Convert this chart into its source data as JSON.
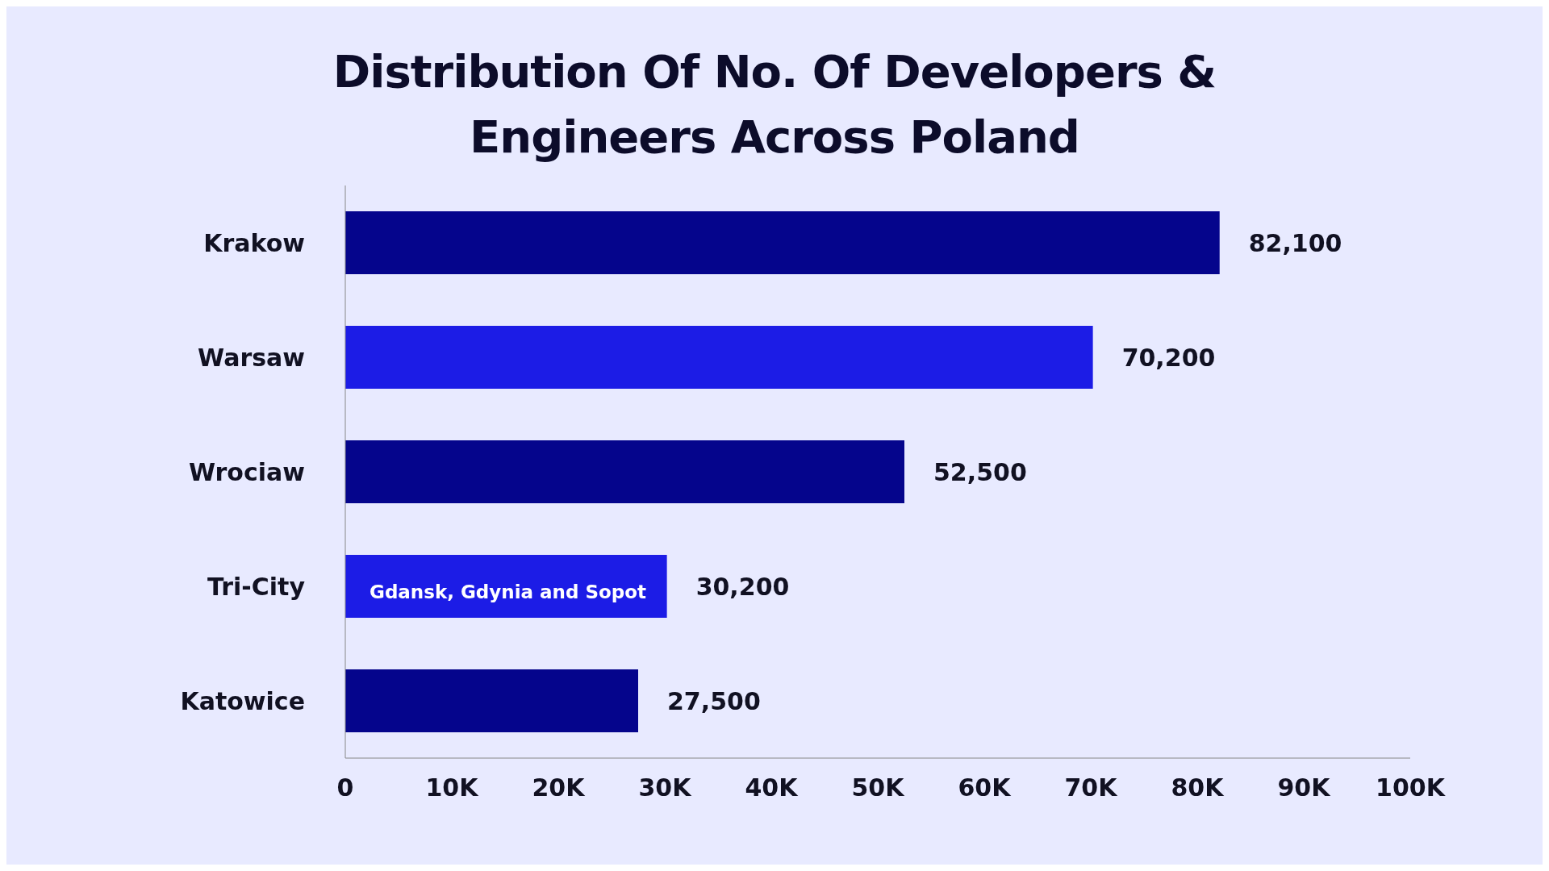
{
  "chart_data": {
    "type": "bar",
    "orientation": "horizontal",
    "title": "Distribution Of No. Of Developers & Engineers Across Poland",
    "categories": [
      "Krakow",
      "Warsaw",
      "Wrociaw",
      "Tri-City",
      "Katowice"
    ],
    "values": [
      82100,
      70200,
      52500,
      30200,
      27500
    ],
    "colors": [
      "#05058c",
      "#1c1ce6",
      "#05058c",
      "#1c1ce6",
      "#05058c"
    ],
    "xlim": [
      0,
      100000
    ],
    "xticks": [
      {
        "value": 0,
        "label": "0"
      },
      {
        "value": 10000,
        "label": "10K"
      },
      {
        "value": 20000,
        "label": "20K"
      },
      {
        "value": 30000,
        "label": "30K"
      },
      {
        "value": 40000,
        "label": "40K"
      },
      {
        "value": 50000,
        "label": "50K"
      },
      {
        "value": 60000,
        "label": "60K"
      },
      {
        "value": 70000,
        "label": "70K"
      },
      {
        "value": 80000,
        "label": "80K"
      },
      {
        "value": 90000,
        "label": "90K"
      },
      {
        "value": 100000,
        "label": "100K"
      }
    ],
    "value_labels": [
      "82,100",
      "70,200",
      "52,500",
      "30,200",
      "27,500"
    ],
    "grid": false,
    "legend": false,
    "annotations": [
      "Gdansk, Gdynia and Sopot"
    ]
  }
}
